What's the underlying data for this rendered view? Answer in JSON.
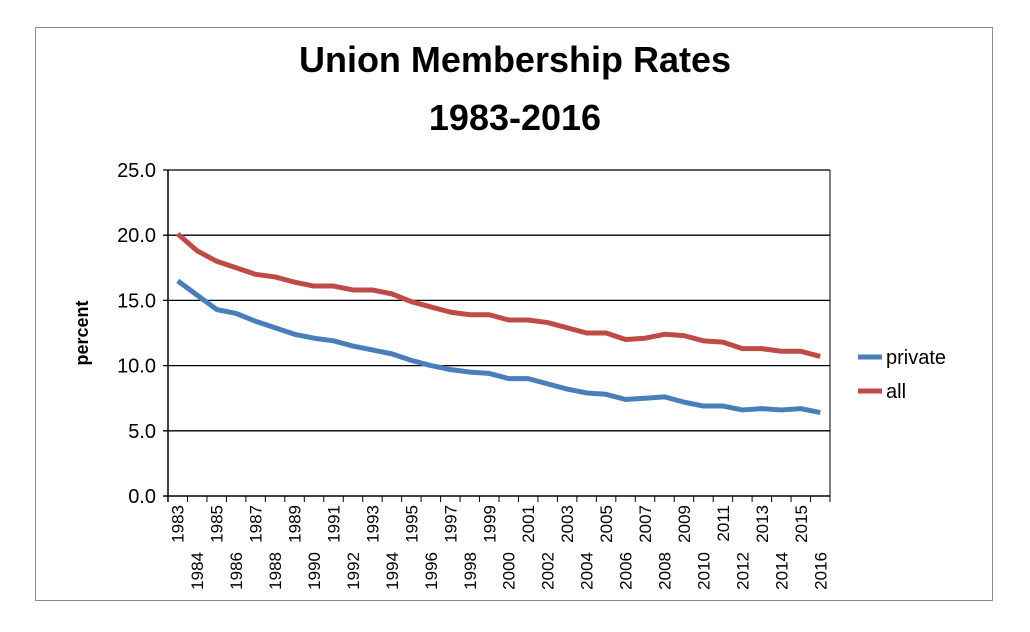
{
  "chart_data": {
    "type": "line",
    "title": [
      "Union Membership Rates",
      "1983-2016"
    ],
    "xlabel": "",
    "ylabel": "percent",
    "ylim": [
      0,
      25
    ],
    "yticks": [
      "0.0",
      "5.0",
      "10.0",
      "15.0",
      "20.0",
      "25.0"
    ],
    "grid": true,
    "legend_position": "right",
    "categories": [
      "1983",
      "1984",
      "1985",
      "1986",
      "1987",
      "1988",
      "1989",
      "1990",
      "1991",
      "1992",
      "1993",
      "1994",
      "1995",
      "1996",
      "1997",
      "1998",
      "1999",
      "2000",
      "2001",
      "2002",
      "2003",
      "2004",
      "2005",
      "2006",
      "2007",
      "2008",
      "2009",
      "2010",
      "2011",
      "2012",
      "2013",
      "2014",
      "2015",
      "2016"
    ],
    "series": [
      {
        "name": "private",
        "color": "#4a7ebb",
        "values": [
          16.5,
          15.4,
          14.3,
          14.0,
          13.4,
          12.9,
          12.4,
          12.1,
          11.9,
          11.5,
          11.2,
          10.9,
          10.4,
          10.0,
          9.7,
          9.5,
          9.4,
          9.0,
          9.0,
          8.6,
          8.2,
          7.9,
          7.8,
          7.4,
          7.5,
          7.6,
          7.2,
          6.9,
          6.9,
          6.6,
          6.7,
          6.6,
          6.7,
          6.4
        ]
      },
      {
        "name": "all",
        "color": "#be4b48",
        "values": [
          20.1,
          18.8,
          18.0,
          17.5,
          17.0,
          16.8,
          16.4,
          16.1,
          16.1,
          15.8,
          15.8,
          15.5,
          14.9,
          14.5,
          14.1,
          13.9,
          13.9,
          13.5,
          13.5,
          13.3,
          12.9,
          12.5,
          12.5,
          12.0,
          12.1,
          12.4,
          12.3,
          11.9,
          11.8,
          11.3,
          11.3,
          11.1,
          11.1,
          10.7
        ]
      }
    ]
  }
}
